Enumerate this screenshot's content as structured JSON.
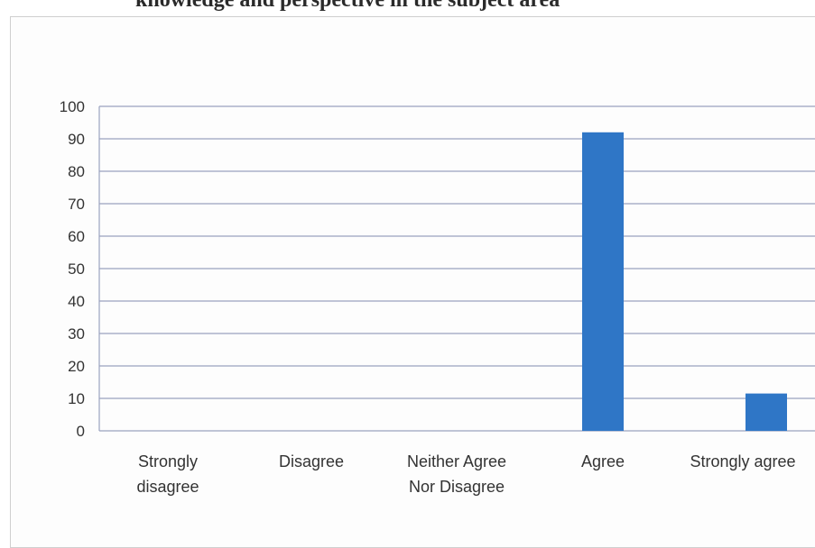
{
  "header": {
    "title": "knowledge and perspective in the subject area"
  },
  "chart_data": {
    "type": "bar",
    "title": "",
    "xlabel": "",
    "ylabel": "",
    "categories": [
      [
        "Strongly",
        "disagree"
      ],
      [
        "Disagree"
      ],
      [
        "Neither Agree",
        "Nor Disagree"
      ],
      [
        "Agree"
      ],
      [
        "Strongly agree"
      ]
    ],
    "values": [
      0,
      0,
      0,
      92,
      11.5
    ],
    "ylim": [
      0,
      100
    ],
    "y_ticks": [
      0,
      10,
      20,
      30,
      40,
      50,
      60,
      70,
      80,
      90,
      100
    ],
    "grid": true,
    "legend": "none",
    "bar_color": "#2f76c6",
    "grid_color": "#9aa3bf"
  }
}
